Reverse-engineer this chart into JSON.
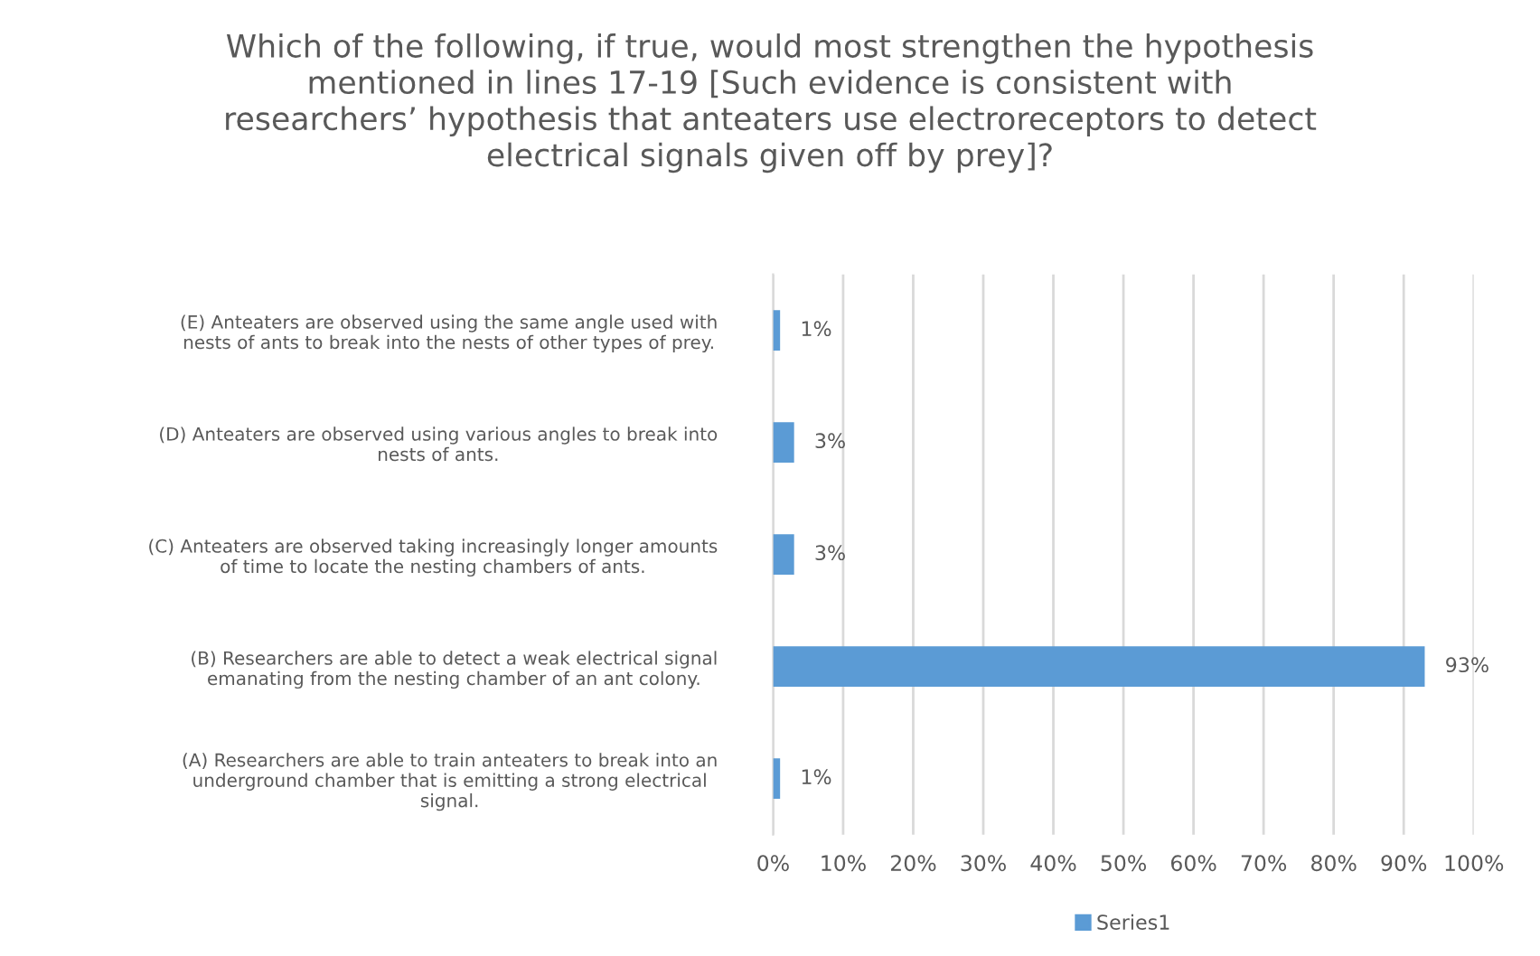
{
  "chart_data": {
    "type": "bar",
    "orientation": "horizontal",
    "title": "Which of the following, if true, would most strengthen the hypothesis mentioned in lines 17-19 [Such evidence is consistent with researchers’ hypothesis that anteaters use electroreceptors to detect electrical signals given off by prey]?",
    "categories": [
      "(E) Anteaters are observed using the same angle used with nests of ants to break into the nests of other types of prey.",
      "(D) Anteaters are observed using various angles to break into nests of ants.",
      "(C) Anteaters are observed taking increasingly longer amounts of time to locate the nesting chambers of ants.",
      "(B) Researchers are able to detect a weak electrical signal emanating from the nesting chamber of an ant colony.",
      "(A) Researchers are able to train anteaters to break into an underground chamber that is emitting a strong electrical signal."
    ],
    "series": [
      {
        "name": "Series1",
        "color": "#5b9bd5",
        "values": [
          1,
          3,
          3,
          93,
          1
        ],
        "value_labels": [
          "1%",
          "3%",
          "3%",
          "93%",
          "1%"
        ]
      }
    ],
    "xlim": [
      0,
      100
    ],
    "xticks": [
      {
        "value": 0,
        "label": "0%"
      },
      {
        "value": 10,
        "label": "10%"
      },
      {
        "value": 20,
        "label": "20%"
      },
      {
        "value": 30,
        "label": "30%"
      },
      {
        "value": 40,
        "label": "40%"
      },
      {
        "value": 50,
        "label": "50%"
      },
      {
        "value": 60,
        "label": "60%"
      },
      {
        "value": 70,
        "label": "70%"
      },
      {
        "value": 80,
        "label": "80%"
      },
      {
        "value": 90,
        "label": "90%"
      },
      {
        "value": 100,
        "label": "100%"
      }
    ],
    "grid": "x",
    "legend": "bottom"
  }
}
